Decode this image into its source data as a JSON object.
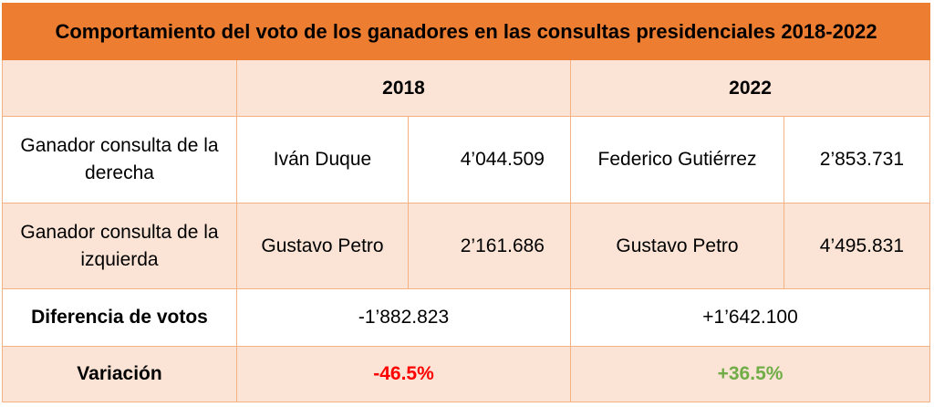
{
  "title": "Comportamiento del voto de los ganadores en las consultas presidenciales 2018-2022",
  "years": [
    "2018",
    "2022"
  ],
  "rows": [
    {
      "label": "Ganador consulta de la derecha",
      "c2018_name": "Iván Duque",
      "c2018_votes": "4’044.509",
      "c2022_name": "Federico Gutiérrez",
      "c2022_votes": "2’853.731"
    },
    {
      "label": "Ganador consulta de la izquierda",
      "c2018_name": "Gustavo Petro",
      "c2018_votes": "2’161.686",
      "c2022_name": "Gustavo Petro",
      "c2022_votes": "4’495.831"
    }
  ],
  "difference": {
    "label": "Diferencia de votos",
    "v2018": "-1’882.823",
    "v2022": "+1’642.100"
  },
  "variation": {
    "label": "Variación",
    "v2018": "-46.5%",
    "v2022": "+36.5%"
  },
  "colors": {
    "header": "#ed7d31",
    "band": "#fbe4d5",
    "border": "#f4b183",
    "negative": "#ff0000",
    "positive": "#70ad47"
  }
}
